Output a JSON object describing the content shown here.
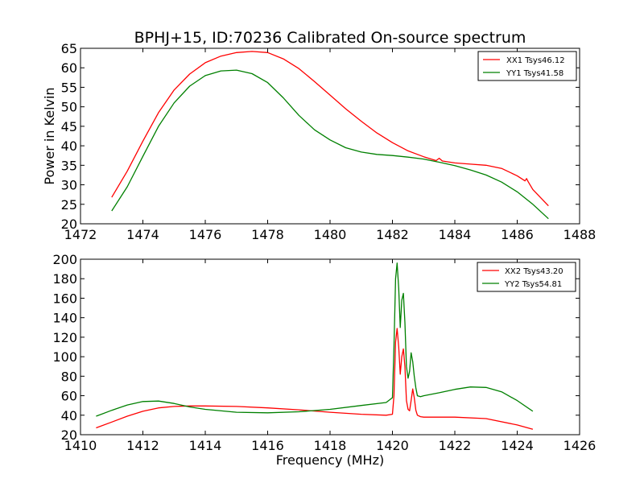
{
  "title": "BPHJ+15, ID:70236 Calibrated On-source spectrum",
  "chart_data": [
    {
      "type": "line",
      "title": "BPHJ+15, ID:70236 Calibrated On-source spectrum",
      "xlabel": "",
      "ylabel": "Power in Kelvin",
      "xlim": [
        1472,
        1488
      ],
      "ylim": [
        20,
        65
      ],
      "xticks": [
        "1472",
        "1474",
        "1476",
        "1478",
        "1480",
        "1482",
        "1484",
        "1486",
        "1488"
      ],
      "yticks": [
        "20",
        "25",
        "30",
        "35",
        "40",
        "45",
        "50",
        "55",
        "60",
        "65"
      ],
      "legend_position": "top-right",
      "series": [
        {
          "name": "XX1 Tsys46.12",
          "color": "#ff0000",
          "x": [
            1473.0,
            1473.5,
            1474.0,
            1474.5,
            1475.0,
            1475.5,
            1476.0,
            1476.5,
            1477.0,
            1477.5,
            1478.0,
            1478.5,
            1479.0,
            1479.5,
            1480.0,
            1480.5,
            1481.0,
            1481.5,
            1482.0,
            1482.5,
            1483.0,
            1483.4,
            1483.5,
            1483.6,
            1484.0,
            1484.5,
            1485.0,
            1485.5,
            1486.0,
            1486.25,
            1486.3,
            1486.35,
            1486.5,
            1487.0
          ],
          "y": [
            26.8,
            33.5,
            41.2,
            48.5,
            54.3,
            58.4,
            61.3,
            63.0,
            63.9,
            64.2,
            63.9,
            62.3,
            59.8,
            56.5,
            53.0,
            49.5,
            46.3,
            43.3,
            40.8,
            38.7,
            37.2,
            36.2,
            36.8,
            36.1,
            35.6,
            35.3,
            35.0,
            34.2,
            32.3,
            31.0,
            31.6,
            30.8,
            28.8,
            24.6
          ]
        },
        {
          "name": "YY1 Tsys41.58",
          "color": "#008000",
          "x": [
            1473.0,
            1473.5,
            1474.0,
            1474.5,
            1475.0,
            1475.5,
            1476.0,
            1476.5,
            1477.0,
            1477.5,
            1478.0,
            1478.5,
            1479.0,
            1479.5,
            1480.0,
            1480.5,
            1481.0,
            1481.5,
            1482.0,
            1482.5,
            1483.0,
            1483.5,
            1484.0,
            1484.5,
            1485.0,
            1485.5,
            1486.0,
            1486.5,
            1487.0
          ],
          "y": [
            23.3,
            29.5,
            37.3,
            45.0,
            51.0,
            55.3,
            58.0,
            59.2,
            59.4,
            58.5,
            56.2,
            52.3,
            47.8,
            44.1,
            41.5,
            39.5,
            38.4,
            37.8,
            37.5,
            37.1,
            36.6,
            35.8,
            34.9,
            33.8,
            32.5,
            30.7,
            28.2,
            25.0,
            21.3
          ]
        }
      ]
    },
    {
      "type": "line",
      "title": "",
      "xlabel": "Frequency (MHz)",
      "ylabel": "",
      "xlim": [
        1410,
        1426
      ],
      "ylim": [
        20,
        200
      ],
      "xticks": [
        "1410",
        "1412",
        "1414",
        "1416",
        "1418",
        "1420",
        "1422",
        "1424",
        "1426"
      ],
      "yticks": [
        "20",
        "40",
        "60",
        "80",
        "100",
        "120",
        "140",
        "160",
        "180",
        "200"
      ],
      "legend_position": "top-right",
      "series": [
        {
          "name": "XX2 Tsys43.20",
          "color": "#ff0000",
          "x": [
            1410.5,
            1411.0,
            1411.5,
            1412.0,
            1412.5,
            1413.0,
            1413.5,
            1414.0,
            1415.0,
            1416.0,
            1417.0,
            1418.0,
            1419.0,
            1419.8,
            1420.0,
            1420.05,
            1420.1,
            1420.15,
            1420.2,
            1420.25,
            1420.3,
            1420.35,
            1420.4,
            1420.45,
            1420.5,
            1420.55,
            1420.6,
            1420.65,
            1420.7,
            1420.75,
            1420.8,
            1420.9,
            1421.0,
            1422.0,
            1423.0,
            1424.0,
            1424.5
          ],
          "y": [
            27.0,
            33.0,
            39.0,
            44.0,
            47.5,
            49.0,
            49.5,
            49.5,
            49.0,
            47.5,
            45.5,
            43.0,
            41.0,
            40.0,
            41.0,
            60.0,
            115.0,
            129.0,
            110.0,
            82.0,
            100.0,
            108.0,
            90.0,
            55.0,
            46.0,
            44.5,
            55.0,
            67.0,
            58.0,
            45.0,
            40.0,
            38.5,
            38.0,
            38.0,
            36.5,
            30.0,
            25.5
          ]
        },
        {
          "name": "YY2 Tsys54.81",
          "color": "#008000",
          "x": [
            1410.5,
            1411.0,
            1411.5,
            1412.0,
            1412.5,
            1413.0,
            1413.5,
            1414.0,
            1415.0,
            1416.0,
            1417.0,
            1418.0,
            1419.0,
            1419.8,
            1420.0,
            1420.05,
            1420.1,
            1420.15,
            1420.2,
            1420.25,
            1420.3,
            1420.35,
            1420.4,
            1420.45,
            1420.5,
            1420.55,
            1420.6,
            1420.65,
            1420.7,
            1420.75,
            1420.8,
            1420.9,
            1421.0,
            1421.5,
            1422.0,
            1422.5,
            1423.0,
            1423.5,
            1424.0,
            1424.5
          ],
          "y": [
            39.0,
            45.0,
            50.5,
            54.0,
            54.5,
            52.0,
            48.5,
            46.0,
            43.0,
            42.5,
            43.5,
            46.0,
            50.0,
            53.0,
            58.0,
            110.0,
            180.0,
            196.0,
            170.0,
            130.0,
            158.0,
            165.0,
            135.0,
            90.0,
            78.0,
            85.0,
            104.0,
            95.0,
            80.0,
            68.0,
            60.0,
            59.0,
            60.0,
            63.0,
            66.5,
            69.0,
            68.5,
            64.0,
            55.0,
            44.0
          ]
        }
      ]
    }
  ]
}
